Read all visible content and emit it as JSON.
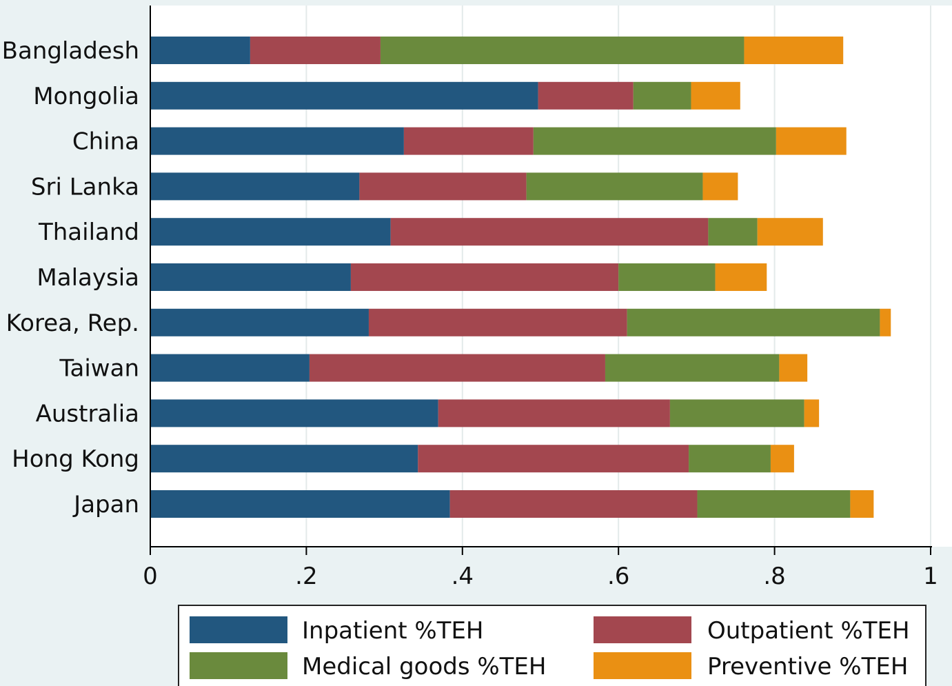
{
  "chart_data": {
    "type": "bar",
    "orientation": "horizontal",
    "stacked": true,
    "title": "",
    "xlabel": "",
    "ylabel": "",
    "xlim": [
      0,
      1
    ],
    "x_ticks": [
      {
        "value": 0,
        "label": "0"
      },
      {
        "value": 0.2,
        "label": ".2"
      },
      {
        "value": 0.4,
        "label": ".4"
      },
      {
        "value": 0.6,
        "label": ".6"
      },
      {
        "value": 0.8,
        "label": ".8"
      },
      {
        "value": 1,
        "label": "1"
      }
    ],
    "grid": true,
    "legend_position": "bottom",
    "categories": [
      "Bangladesh",
      "Mongolia",
      "China",
      "Sri Lanka",
      "Thailand",
      "Malaysia",
      "Korea, Rep.",
      "Taiwan",
      "Australia",
      "Hong Kong",
      "Japan"
    ],
    "series": [
      {
        "name": "Inpatient %TEH",
        "color": "#22577f",
        "values": [
          0.128,
          0.497,
          0.325,
          0.268,
          0.308,
          0.257,
          0.28,
          0.204,
          0.369,
          0.343,
          0.384
        ]
      },
      {
        "name": "Outpatient %TEH",
        "color": "#a3474f",
        "values": [
          0.167,
          0.122,
          0.166,
          0.214,
          0.407,
          0.343,
          0.331,
          0.379,
          0.297,
          0.347,
          0.317
        ]
      },
      {
        "name": "Medical goods %TEH",
        "color": "#6a8a3d",
        "values": [
          0.466,
          0.074,
          0.311,
          0.226,
          0.063,
          0.124,
          0.324,
          0.223,
          0.172,
          0.105,
          0.196
        ]
      },
      {
        "name": "Preventive %TEH",
        "color": "#ea9013",
        "values": [
          0.127,
          0.063,
          0.09,
          0.045,
          0.084,
          0.066,
          0.014,
          0.036,
          0.019,
          0.03,
          0.03
        ]
      }
    ]
  }
}
